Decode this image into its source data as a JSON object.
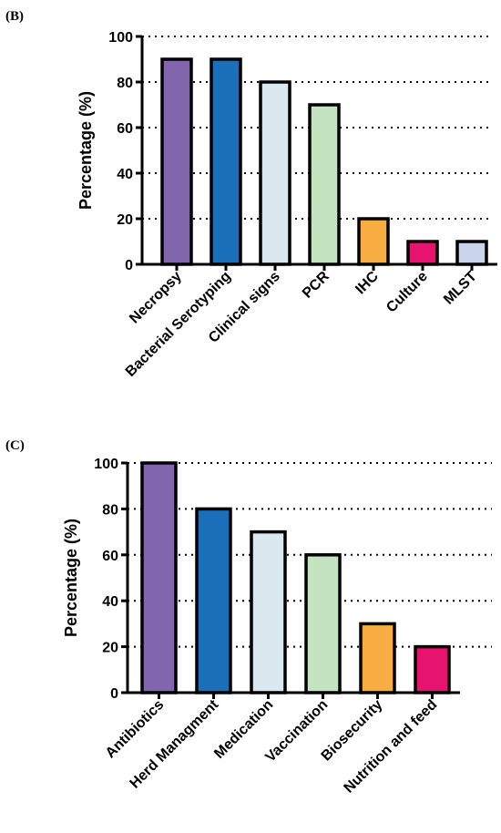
{
  "chart_data": [
    {
      "type": "bar",
      "panel_label": "(B)",
      "categories": [
        "Necropsy",
        "Bacterial Serotyping",
        "Clinical signs",
        "PCR",
        "IHC",
        "Culture",
        "MLST"
      ],
      "values": [
        90,
        90,
        80,
        70,
        20,
        10,
        10
      ],
      "colors": [
        "#8266ad",
        "#1a6fb8",
        "#d9e9ef",
        "#c4e3c0",
        "#f7ad42",
        "#e6136f",
        "#c8d5ec"
      ],
      "ylabel": "Percentage (%)",
      "ylim": [
        0,
        100
      ],
      "yticks": [
        0,
        20,
        40,
        60,
        80,
        100
      ],
      "grid": "horizontal dotted"
    },
    {
      "type": "bar",
      "panel_label": "(C)",
      "categories": [
        "Antibiotics",
        "Herd Managment",
        "Medication",
        "Vaccination",
        "Biosecurity",
        "Nutrition and feed"
      ],
      "values": [
        100,
        80,
        70,
        60,
        30,
        20
      ],
      "colors": [
        "#8266ad",
        "#1a6fb8",
        "#d9e9ef",
        "#c4e3c0",
        "#f7ad42",
        "#e6136f"
      ],
      "ylabel": "Percentage (%)",
      "ylim": [
        0,
        100
      ],
      "yticks": [
        0,
        20,
        40,
        60,
        80,
        100
      ],
      "grid": "horizontal dotted"
    }
  ]
}
